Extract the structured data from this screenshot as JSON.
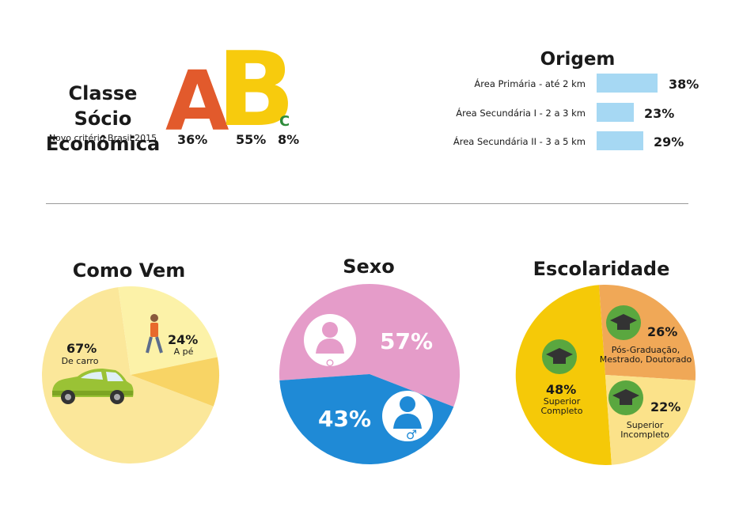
{
  "classe": {
    "title_line1": "Classe Sócio",
    "title_line2": "Econômica",
    "subtitle": "Novo critério Brasil 2015",
    "letters": [
      "A",
      "B",
      "C"
    ],
    "values": [
      "36%",
      "55%",
      "8%"
    ],
    "colors": [
      "#e25a2c",
      "#f7cb0d",
      "#2e8b3a"
    ]
  },
  "origem": {
    "title": "Origem",
    "items": [
      {
        "label": "Área Primária - até 2 km",
        "value": "38%"
      },
      {
        "label": "Área Secundária I - 2 a 3 km",
        "value": "23%"
      },
      {
        "label": "Área Secundária II - 3 a 5 km",
        "value": "29%"
      }
    ],
    "bar_color": "#a6d8f3"
  },
  "como_vem": {
    "title": "Como Vem",
    "carro_pct": "67%",
    "carro_label": "De carro",
    "pe_pct": "24%",
    "pe_label": "A pé",
    "colors": [
      "#fbe79a",
      "#fcf2a8",
      "#f8d465"
    ]
  },
  "sexo": {
    "title": "Sexo",
    "feminino_pct": "57%",
    "masculino_pct": "43%",
    "colors": [
      "#e59cc9",
      "#1f8ad6"
    ]
  },
  "escolaridade": {
    "title": "Escolaridade",
    "completo_pct": "48%",
    "completo_label_1": "Superior",
    "completo_label_2": "Completo",
    "pos_pct": "26%",
    "pos_label_1": "Pós-Graduação,",
    "pos_label_2": "Mestrado, Doutorado",
    "incompleto_pct": "22%",
    "incompleto_label_1": "Superior",
    "incompleto_label_2": "Incompleto",
    "colors": [
      "#f5c908",
      "#f0a857",
      "#fbe28a"
    ]
  },
  "chart_data": [
    {
      "type": "bar",
      "title": "Classe Sócio Econômica",
      "categories": [
        "A",
        "B",
        "C"
      ],
      "values": [
        36,
        55,
        8
      ]
    },
    {
      "type": "bar",
      "title": "Origem",
      "categories": [
        "Área Primária - até 2 km",
        "Área Secundária I - 2 a 3 km",
        "Área Secundária II - 3 a 5 km"
      ],
      "values": [
        38,
        23,
        29
      ]
    },
    {
      "type": "pie",
      "title": "Como Vem",
      "categories": [
        "De carro",
        "A pé",
        ""
      ],
      "values": [
        67,
        24,
        9
      ]
    },
    {
      "type": "pie",
      "title": "Sexo",
      "categories": [
        "",
        ""
      ],
      "values": [
        57,
        43
      ]
    },
    {
      "type": "pie",
      "title": "Escolaridade",
      "categories": [
        "Superior Completo",
        "Pós-Graduação, Mestrado, Doutorado",
        "Superior Incompleto"
      ],
      "values": [
        48,
        26,
        22
      ]
    }
  ]
}
